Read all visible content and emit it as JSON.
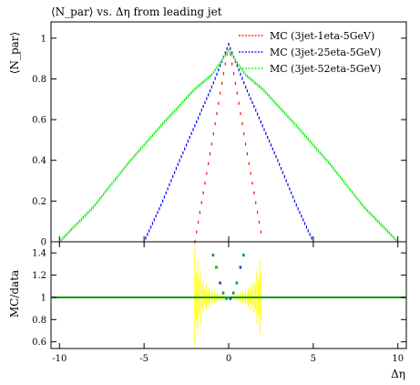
{
  "chart_data": {
    "type": "line",
    "title": "⟨N_par⟩ vs. Δη from leading jet",
    "xlabel": "Δη",
    "main": {
      "ylabel": "⟨N_par⟩",
      "xlim": [
        -10.5,
        10.5
      ],
      "ylim": [
        0,
        1.08
      ],
      "x_ticks": [
        -10,
        -5,
        0,
        5,
        10
      ],
      "y_ticks": [
        0,
        0.2,
        0.4,
        0.6,
        0.8,
        1
      ],
      "y_tick_labels": [
        "0",
        "0.2",
        "0.4",
        "0.6",
        "0.8",
        "1"
      ],
      "series": [
        {
          "name": "MC (3jet-1eta-5GeV)",
          "color": "#ff0000",
          "x": [
            -2.0,
            -1.5,
            -1.0,
            -0.5,
            0.0,
            0.5,
            1.0,
            1.5,
            2.0
          ],
          "y": [
            0.0,
            0.24,
            0.48,
            0.73,
            0.97,
            0.73,
            0.48,
            0.24,
            0.0
          ]
        },
        {
          "name": "MC (3jet-25eta-5GeV)",
          "color": "#0000ff",
          "x": [
            -5.0,
            -4.0,
            -3.0,
            -2.0,
            -1.0,
            0.0,
            1.0,
            2.0,
            3.0,
            4.0,
            5.0
          ],
          "y": [
            0.0,
            0.18,
            0.38,
            0.57,
            0.76,
            0.97,
            0.76,
            0.57,
            0.38,
            0.18,
            0.0
          ]
        },
        {
          "name": "MC (3jet-52eta-5GeV)",
          "color": "#00ee00",
          "x": [
            -10.0,
            -8.0,
            -6.0,
            -4.0,
            -2.0,
            -1.0,
            0.0,
            1.0,
            2.0,
            4.0,
            6.0,
            8.0,
            10.0
          ],
          "y": [
            0.0,
            0.17,
            0.38,
            0.57,
            0.75,
            0.82,
            0.94,
            0.82,
            0.75,
            0.57,
            0.38,
            0.17,
            0.0
          ]
        }
      ]
    },
    "ratio": {
      "ylabel": "MC/data",
      "ylim": [
        0.54,
        1.5
      ],
      "y_ticks": [
        0.6,
        0.8,
        1.0,
        1.2,
        1.4
      ],
      "y_tick_labels": [
        "0.6",
        "0.8",
        "1",
        "1.2",
        "1.4"
      ],
      "reference_line": {
        "y": 1.0,
        "color": "#009900"
      },
      "band": {
        "color": "#ffff00",
        "x": [
          -2.0,
          -1.5,
          -1.0,
          -0.5,
          0.0,
          0.5,
          1.0,
          1.5,
          2.0
        ],
        "upper": [
          1.45,
          1.14,
          1.07,
          1.03,
          1.0,
          1.03,
          1.07,
          1.14,
          1.45
        ],
        "lower": [
          0.57,
          0.86,
          0.93,
          0.97,
          1.0,
          0.97,
          0.93,
          0.86,
          0.57
        ]
      },
      "points": {
        "colors": [
          "#00cc00",
          "#0000ff",
          "#00cc00"
        ],
        "x": [
          -0.9,
          -0.7,
          -0.5,
          -0.3,
          -0.1,
          0.1,
          0.3,
          0.5,
          0.7,
          0.9
        ],
        "y": [
          1.38,
          1.27,
          1.13,
          1.04,
          0.99,
          0.99,
          1.04,
          1.13,
          1.27,
          1.38
        ]
      }
    }
  }
}
